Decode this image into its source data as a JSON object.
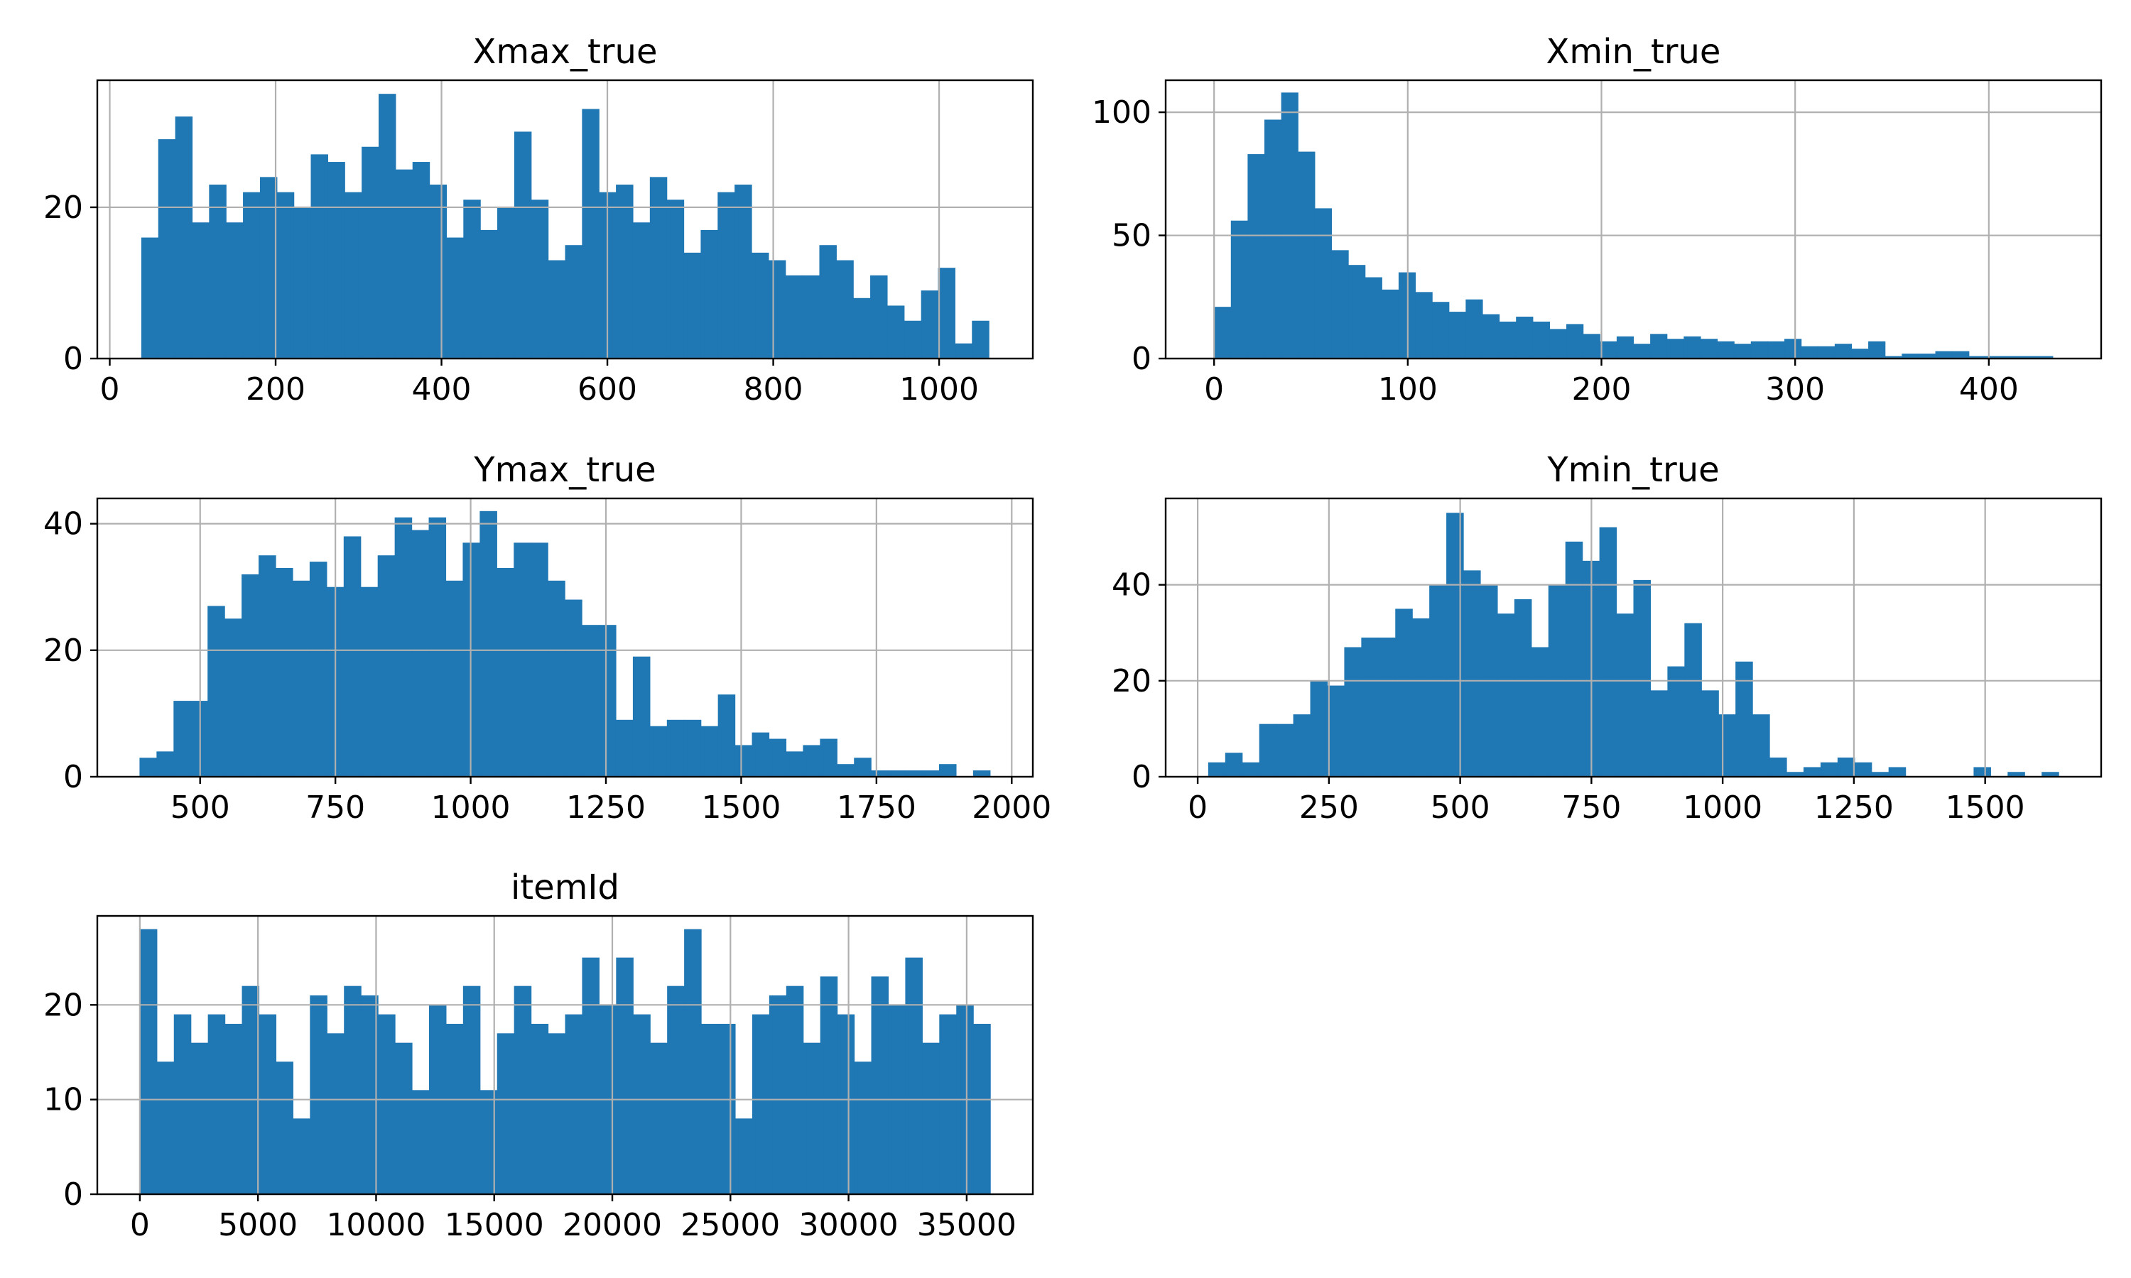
{
  "bar_color": "#1f77b4",
  "chart_data": [
    {
      "type": "bar",
      "title": "Xmax_true",
      "xlabel": "",
      "ylabel": "",
      "bin_start": 38,
      "bin_end": 1060,
      "values": [
        16,
        29,
        32,
        18,
        23,
        18,
        22,
        24,
        22,
        20,
        27,
        26,
        22,
        28,
        35,
        25,
        26,
        23,
        16,
        21,
        17,
        20,
        30,
        21,
        13,
        15,
        33,
        22,
        23,
        18,
        24,
        21,
        14,
        17,
        22,
        23,
        14,
        13,
        11,
        11,
        15,
        13,
        8,
        11,
        7,
        5,
        9,
        12,
        2,
        5
      ],
      "xlim": [
        -15,
        1113
      ],
      "ylim": [
        0,
        36.8
      ],
      "xticks": [
        0,
        200,
        400,
        600,
        800,
        1000
      ],
      "xtick_labels": [
        "0",
        "200",
        "400",
        "600",
        "800",
        "1000"
      ],
      "yticks": [
        0,
        20
      ],
      "ytick_labels": [
        "0",
        "20"
      ],
      "grid": true,
      "legend": "none"
    },
    {
      "type": "bar",
      "title": "Xmin_true",
      "xlabel": "",
      "ylabel": "",
      "bin_start": 0,
      "bin_end": 433,
      "values": [
        21,
        56,
        83,
        97,
        108,
        84,
        61,
        44,
        38,
        33,
        28,
        35,
        27,
        23,
        19,
        24,
        18,
        15,
        17,
        15,
        12,
        14,
        10,
        7,
        9,
        6,
        10,
        8,
        9,
        8,
        7,
        6,
        7,
        7,
        8,
        5,
        5,
        6,
        4,
        7,
        1,
        2,
        2,
        3,
        3,
        1,
        1,
        1,
        1,
        1
      ],
      "xlim": [
        -25,
        458
      ],
      "ylim": [
        0,
        113
      ],
      "xticks": [
        0,
        100,
        200,
        300,
        400
      ],
      "xtick_labels": [
        "0",
        "100",
        "200",
        "300",
        "400"
      ],
      "yticks": [
        0,
        50,
        100
      ],
      "ytick_labels": [
        "0",
        "50",
        "100"
      ],
      "grid": true,
      "legend": "none"
    },
    {
      "type": "bar",
      "title": "Ymax_true",
      "xlabel": "",
      "ylabel": "",
      "bin_start": 388,
      "bin_end": 1960,
      "values": [
        3,
        4,
        12,
        12,
        27,
        25,
        32,
        35,
        33,
        31,
        34,
        30,
        38,
        30,
        35,
        41,
        39,
        41,
        31,
        37,
        42,
        33,
        37,
        37,
        31,
        28,
        24,
        24,
        9,
        19,
        8,
        9,
        9,
        8,
        13,
        5,
        7,
        6,
        4,
        5,
        6,
        2,
        3,
        1,
        1,
        1,
        1,
        2,
        0,
        1
      ],
      "xlim": [
        310,
        2039
      ],
      "ylim": [
        0,
        44
      ],
      "xticks": [
        500,
        750,
        1000,
        1250,
        1500,
        1750,
        2000
      ],
      "xtick_labels": [
        "500",
        "750",
        "1000",
        "1250",
        "1500",
        "1750",
        "2000"
      ],
      "yticks": [
        0,
        20,
        40
      ],
      "ytick_labels": [
        "0",
        "20",
        "40"
      ],
      "grid": true,
      "legend": "none"
    },
    {
      "type": "bar",
      "title": "Ymin_true",
      "xlabel": "",
      "ylabel": "",
      "bin_start": 20,
      "bin_end": 1640,
      "values": [
        3,
        5,
        3,
        11,
        11,
        13,
        20,
        19,
        27,
        29,
        29,
        35,
        33,
        40,
        55,
        43,
        40,
        34,
        37,
        27,
        40,
        49,
        45,
        52,
        34,
        41,
        18,
        23,
        32,
        18,
        13,
        24,
        13,
        4,
        1,
        2,
        3,
        4,
        3,
        1,
        2,
        0,
        0,
        0,
        0,
        2,
        0,
        1,
        0,
        1
      ],
      "xlim": [
        -61,
        1721
      ],
      "ylim": [
        0,
        58
      ],
      "xticks": [
        0,
        250,
        500,
        750,
        1000,
        1250,
        1500
      ],
      "xtick_labels": [
        "0",
        "250",
        "500",
        "750",
        "1000",
        "1250",
        "1500"
      ],
      "yticks": [
        0,
        20,
        40
      ],
      "ytick_labels": [
        "0",
        "20",
        "40"
      ],
      "grid": true,
      "legend": "none"
    },
    {
      "type": "bar",
      "title": "itemId",
      "xlabel": "",
      "ylabel": "",
      "bin_start": 0,
      "bin_end": 36000,
      "values": [
        28,
        14,
        19,
        16,
        19,
        18,
        22,
        19,
        14,
        8,
        21,
        17,
        22,
        21,
        19,
        16,
        11,
        20,
        18,
        22,
        11,
        17,
        22,
        18,
        17,
        19,
        25,
        20,
        25,
        19,
        16,
        22,
        28,
        18,
        18,
        8,
        19,
        21,
        22,
        16,
        23,
        19,
        14,
        23,
        20,
        25,
        16,
        19,
        20,
        18
      ],
      "xlim": [
        -1800,
        37800
      ],
      "ylim": [
        0,
        29.4
      ],
      "xticks": [
        0,
        5000,
        10000,
        15000,
        20000,
        25000,
        30000,
        35000
      ],
      "xtick_labels": [
        "0",
        "5000",
        "10000",
        "15000",
        "20000",
        "25000",
        "30000",
        "35000"
      ],
      "yticks": [
        0,
        10,
        20
      ],
      "ytick_labels": [
        "0",
        "10",
        "20"
      ],
      "grid": true,
      "legend": "none"
    }
  ]
}
